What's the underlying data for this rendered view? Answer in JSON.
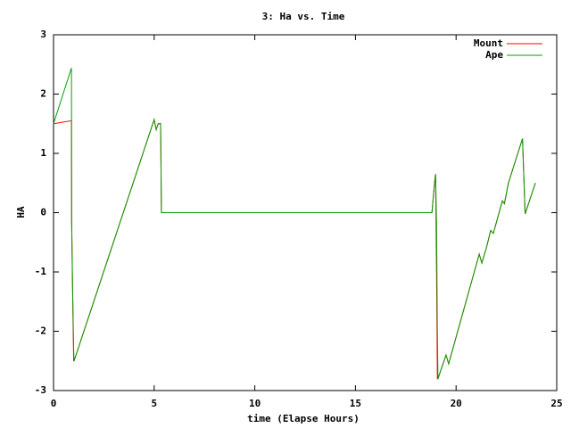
{
  "chart_data": {
    "type": "line",
    "title": "3: Ha vs. Time",
    "x_label": "time (Elapse Hours)",
    "y_label": "HA",
    "x": [
      0,
      0.89,
      0.9,
      0.95,
      1.0,
      1.02,
      5.0,
      5.1,
      5.2,
      5.32,
      5.36,
      18.8,
      18.93,
      18.98,
      19.03,
      19.07,
      19.1,
      19.5,
      19.63,
      21.15,
      21.28,
      21.5,
      21.72,
      21.85,
      22.3,
      22.4,
      22.6,
      23.3,
      23.43,
      23.94
    ],
    "series": [
      {
        "name": "Mount",
        "color": "#ff0000",
        "values": [
          1.5,
          1.55,
          -0.15,
          -1.4,
          -2.5,
          -2.5,
          1.57,
          1.4,
          1.5,
          1.5,
          0,
          0,
          0.5,
          0.65,
          -1.0,
          -2.8,
          -2.8,
          -2.4,
          -2.55,
          -0.7,
          -0.85,
          -0.6,
          -0.3,
          -0.35,
          0.2,
          0.15,
          0.5,
          1.25,
          -0.02,
          0.5
        ]
      },
      {
        "name": "Ape",
        "color": "#00a000",
        "values": [
          1.5,
          2.44,
          -0.15,
          -1.3,
          -2.3,
          -2.5,
          1.57,
          1.4,
          1.5,
          1.5,
          0,
          0,
          0.5,
          0.65,
          -0.2,
          -2.0,
          -2.8,
          -2.4,
          -2.55,
          -0.7,
          -0.85,
          -0.6,
          -0.3,
          -0.35,
          0.2,
          0.15,
          0.5,
          1.25,
          -0.02,
          0.5
        ]
      }
    ],
    "xlim": [
      0,
      25
    ],
    "xticks": [
      0,
      5,
      10,
      15,
      20,
      25
    ],
    "ylim": [
      -3,
      3
    ],
    "yticks": [
      -3,
      -2,
      -1,
      0,
      1,
      2,
      3
    ],
    "grid": false,
    "legend": "top-right"
  }
}
